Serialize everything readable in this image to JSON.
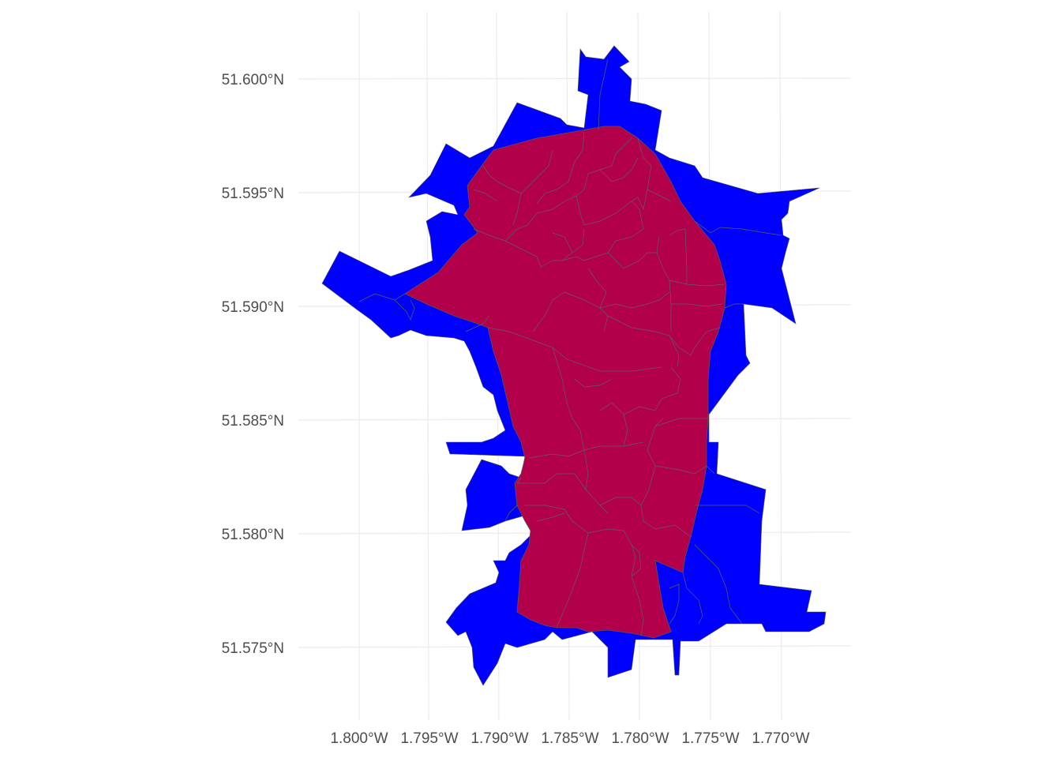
{
  "map": {
    "x_ticks": [
      "1.800°W",
      "1.795°W",
      "1.790°W",
      "1.785°W",
      "1.780°W",
      "1.775°W",
      "1.770°W"
    ],
    "y_ticks": [
      "51.600°N",
      "51.595°N",
      "51.590°N",
      "51.585°N",
      "51.580°N",
      "51.575°N"
    ],
    "colors": {
      "outer_region": "#0000ff",
      "inner_region": "#b3004b",
      "boundary": "#5a5a5a",
      "grid": "#ebebeb",
      "tick_text": "#4d4d4d"
    }
  }
}
